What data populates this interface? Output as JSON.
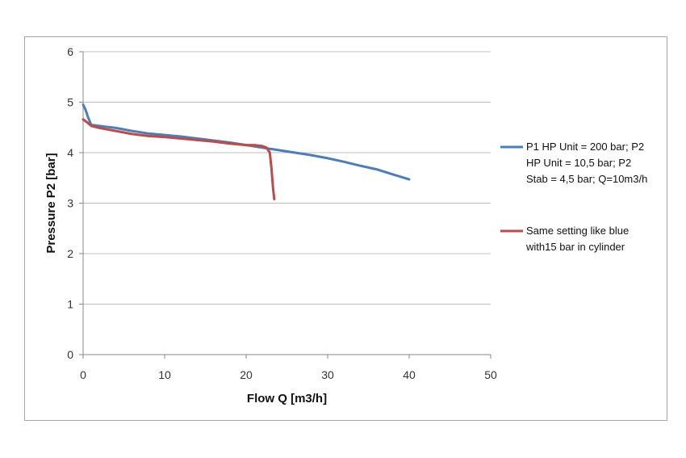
{
  "chart_data": {
    "type": "line",
    "title": "",
    "xlabel": "Flow Q [m3/h]",
    "ylabel": "Pressure P2 [bar]",
    "xlim": [
      0,
      50
    ],
    "ylim": [
      0,
      6
    ],
    "xticks": [
      "0",
      "10",
      "20",
      "30",
      "40",
      "50"
    ],
    "yticks": [
      "0",
      "1",
      "2",
      "3",
      "4",
      "5",
      "6"
    ],
    "grid": "horizontal",
    "legend_position": "right",
    "series": [
      {
        "name": "P1 HP Unit = 200 bar; P2 HP Unit = 10,5 bar; P2 Stab = 4,5 bar; Q=10m3/h",
        "legend_lines": [
          "P1 HP Unit = 200 bar; P2",
          "HP Unit = 10,5 bar; P2",
          "Stab = 4,5 bar; Q=10m3/h"
        ],
        "color": "#4a7ebb",
        "x": [
          0,
          0.3,
          0.6,
          1,
          2,
          4,
          6,
          8,
          10,
          12,
          14,
          16,
          18,
          20,
          22,
          24,
          26,
          28,
          30,
          32,
          34,
          36,
          38,
          40
        ],
        "y": [
          4.95,
          4.85,
          4.7,
          4.55,
          4.53,
          4.49,
          4.43,
          4.38,
          4.35,
          4.32,
          4.28,
          4.24,
          4.2,
          4.15,
          4.1,
          4.05,
          4.0,
          3.95,
          3.89,
          3.82,
          3.74,
          3.67,
          3.57,
          3.47
        ]
      },
      {
        "name": "Same setting like blue with15 bar in cylinder",
        "legend_lines": [
          "Same setting like blue",
          "with15 bar in cylinder"
        ],
        "color": "#be4b48",
        "x": [
          0,
          0.5,
          1,
          2,
          4,
          6,
          8,
          10,
          12,
          14,
          16,
          18,
          20,
          21,
          22,
          22.5,
          22.9,
          23.1,
          23.3,
          23.45
        ],
        "y": [
          4.66,
          4.6,
          4.53,
          4.49,
          4.43,
          4.37,
          4.33,
          4.31,
          4.28,
          4.25,
          4.22,
          4.18,
          4.15,
          4.15,
          4.13,
          4.1,
          4.0,
          3.7,
          3.3,
          3.08
        ]
      }
    ]
  }
}
